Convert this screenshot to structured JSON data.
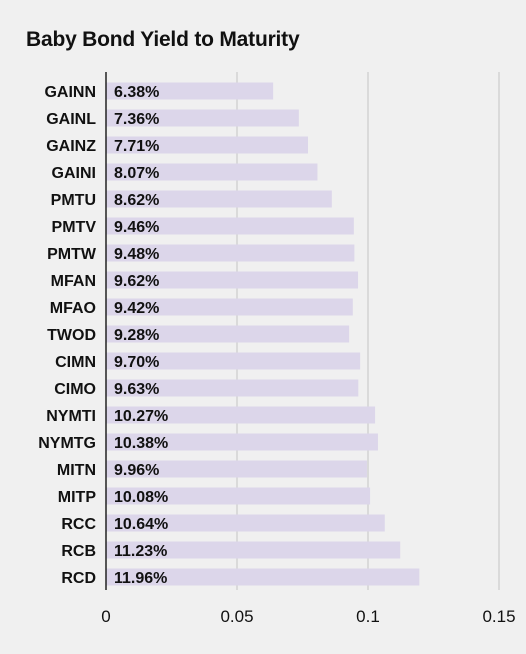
{
  "chart_data": {
    "type": "bar",
    "orientation": "horizontal",
    "title": "Baby Bond Yield to Maturity",
    "xlabel": "",
    "ylabel": "",
    "xlim": [
      0,
      0.15
    ],
    "grid": true,
    "bar_color": "#dcd6ea",
    "grid_color": "#c4c4c4",
    "axis_color": "#222222",
    "background": "#f0f0f0",
    "x_ticks": [
      {
        "value": 0,
        "label": "0"
      },
      {
        "value": 0.05,
        "label": "0.05"
      },
      {
        "value": 0.1,
        "label": "0.1"
      },
      {
        "value": 0.15,
        "label": "0.15"
      }
    ],
    "categories": [
      "GAINN",
      "GAINL",
      "GAINZ",
      "GAINI",
      "PMTU",
      "PMTV",
      "PMTW",
      "MFAN",
      "MFAO",
      "TWOD",
      "CIMN",
      "CIMO",
      "NYMTI",
      "NYMTG",
      "MITN",
      "MITP",
      "RCC",
      "RCB",
      "RCD"
    ],
    "values": [
      0.0638,
      0.0736,
      0.0771,
      0.0807,
      0.0862,
      0.0946,
      0.0948,
      0.0962,
      0.0942,
      0.0928,
      0.097,
      0.0963,
      0.1027,
      0.1038,
      0.0996,
      0.1008,
      0.1064,
      0.1123,
      0.1196
    ],
    "value_labels": [
      "6.38%",
      "7.36%",
      "7.71%",
      "8.07%",
      "8.62%",
      "9.46%",
      "9.48%",
      "9.62%",
      "9.42%",
      "9.28%",
      "9.70%",
      "9.63%",
      "10.27%",
      "10.38%",
      "9.96%",
      "10.08%",
      "10.64%",
      "11.23%",
      "11.96%"
    ]
  }
}
